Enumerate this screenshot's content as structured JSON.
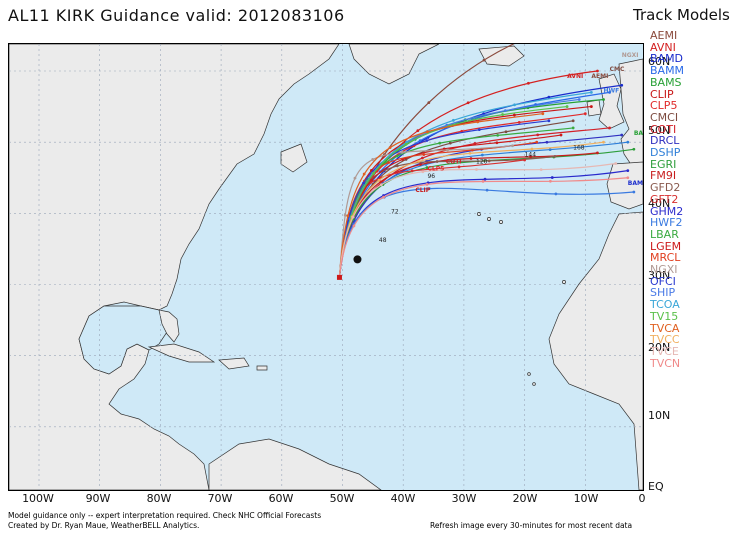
{
  "header": {
    "title": "AL11 KIRK Guidance valid: 2012083106",
    "legend_title": "Track Models"
  },
  "legend": {
    "models": [
      {
        "name": "AEMI",
        "color": "#8b4a3c"
      },
      {
        "name": "AVNI",
        "color": "#d42020"
      },
      {
        "name": "BAMD",
        "color": "#1a2ccc"
      },
      {
        "name": "BAMM",
        "color": "#2a6ae8"
      },
      {
        "name": "BAMS",
        "color": "#27a035"
      },
      {
        "name": "CLIP",
        "color": "#c81818"
      },
      {
        "name": "CLP5",
        "color": "#e02a2a"
      },
      {
        "name": "CMCI",
        "color": "#7d4b40"
      },
      {
        "name": "COTI",
        "color": "#d2222a"
      },
      {
        "name": "DRCL",
        "color": "#3030c0"
      },
      {
        "name": "DSHP",
        "color": "#2f7fd8"
      },
      {
        "name": "EGRI",
        "color": "#2e9e3b"
      },
      {
        "name": "FM9I",
        "color": "#c81e1e"
      },
      {
        "name": "GFD2",
        "color": "#8a5a4e"
      },
      {
        "name": "GFT2",
        "color": "#d83030"
      },
      {
        "name": "GHM2",
        "color": "#2a2acc"
      },
      {
        "name": "HWF2",
        "color": "#3a7ae0"
      },
      {
        "name": "LBAR",
        "color": "#3aaa40"
      },
      {
        "name": "LGEM",
        "color": "#cc1a1a"
      },
      {
        "name": "MRCL",
        "color": "#e04020"
      },
      {
        "name": "NGXI",
        "color": "#b09a94"
      },
      {
        "name": "OFCI",
        "color": "#2a3ad0"
      },
      {
        "name": "SHIP",
        "color": "#4a7ae6"
      },
      {
        "name": "TCOA",
        "color": "#3aa6d8"
      },
      {
        "name": "TV15",
        "color": "#5ac04a"
      },
      {
        "name": "TVCA",
        "color": "#e06020"
      },
      {
        "name": "TVCC",
        "color": "#f0b060"
      },
      {
        "name": "TVCE",
        "color": "#e6b8b4"
      },
      {
        "name": "TVCN",
        "color": "#f08a8a"
      }
    ]
  },
  "axes": {
    "lat_labels": [
      "60N",
      "50N",
      "40N",
      "30N",
      "20N",
      "10N",
      "EQ"
    ],
    "lon_labels": [
      "100W",
      "90W",
      "80W",
      "70W",
      "60W",
      "50W",
      "40W",
      "30W",
      "20W",
      "10W",
      "0"
    ]
  },
  "map": {
    "ocean_color": "#cfe9f7",
    "land_color": "#ebebeb",
    "grid_color": "#9aa6b8",
    "track_start": {
      "lat": 31,
      "lon": 50.5
    },
    "forecast_hour_labels": [
      "48",
      "72",
      "96",
      "120",
      "144",
      "168"
    ],
    "track_labels": [
      "AVNI",
      "AEMI",
      "CMC",
      "NGXI",
      "HWF",
      "BAMS",
      "BAMD",
      "CLP5",
      "CLIP",
      "COTI"
    ]
  },
  "footer": {
    "line1": "Model guidance only -- expert interpretation required.  Check NHC Official Forecasts",
    "line2": "Created by Dr. Ryan Maue, WeatherBELL Analytics.",
    "refresh": "Refresh image every 30-minutes for most recent data"
  }
}
